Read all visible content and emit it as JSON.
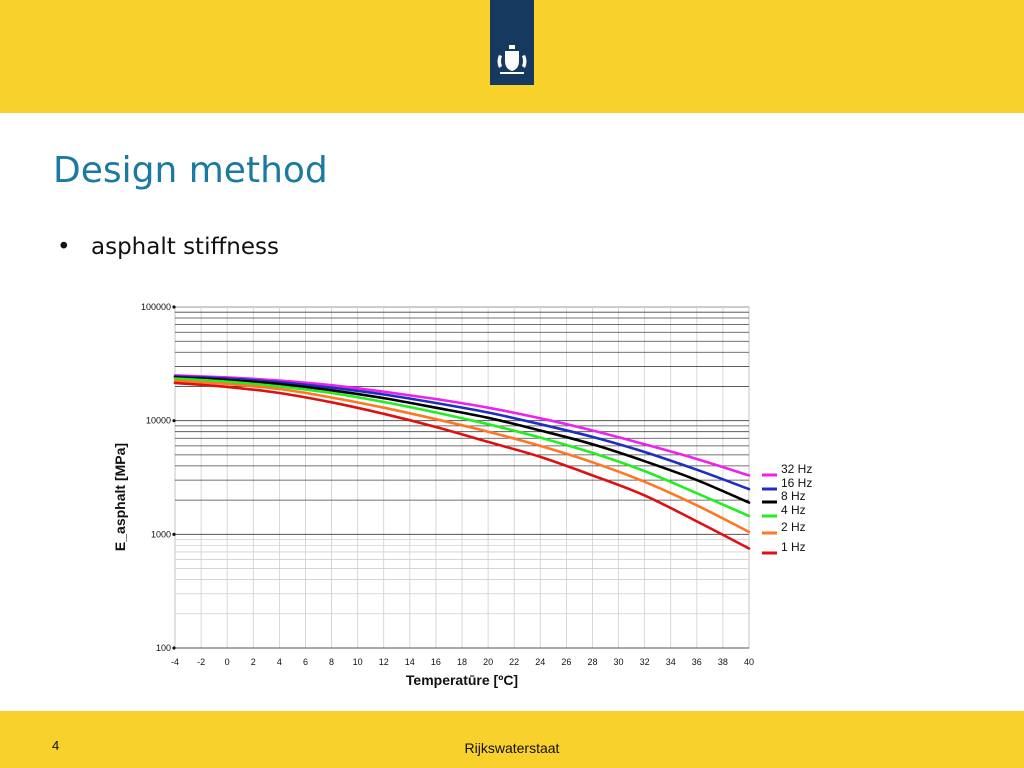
{
  "slide": {
    "title": "Design method",
    "bullet": "asphalt stiffness",
    "page_number": "4",
    "organization": "Rijkswaterstaat"
  },
  "colors": {
    "band": "#f9d12c",
    "logo": "#163a5f",
    "title": "#1a7aa0"
  },
  "icons": {
    "logo": "royal-coat-of-arms-icon"
  },
  "chart_data": {
    "type": "line",
    "xlabel": "Temperatūre [ºC]",
    "ylabel": "E_asphalt [MPa]",
    "yscale": "log",
    "xlim": [
      -4,
      40
    ],
    "ylim": [
      100,
      100000
    ],
    "xticks": [
      -4,
      -2,
      0,
      2,
      4,
      6,
      8,
      10,
      12,
      14,
      16,
      18,
      20,
      22,
      24,
      26,
      28,
      30,
      32,
      34,
      36,
      38,
      40
    ],
    "ytick_labels": [
      "100000",
      "10000",
      "1000",
      "100"
    ],
    "grid": true,
    "legend_position": "right",
    "x": [
      -4,
      0,
      4,
      8,
      12,
      16,
      20,
      24,
      28,
      32,
      36,
      40
    ],
    "series": [
      {
        "name": "32 Hz",
        "color": "#ee22ee",
        "values": [
          25000,
          24000,
          22500,
          20500,
          18000,
          15500,
          13000,
          10500,
          8200,
          6200,
          4600,
          3300
        ]
      },
      {
        "name": "16 Hz",
        "color": "#1c2fbf",
        "values": [
          24500,
          23500,
          21800,
          19500,
          17000,
          14300,
          11800,
          9300,
          7200,
          5300,
          3700,
          2500
        ]
      },
      {
        "name": "8 Hz",
        "color": "#000000",
        "values": [
          24000,
          22800,
          21000,
          18500,
          15800,
          13000,
          10600,
          8200,
          6200,
          4400,
          3000,
          1900
        ]
      },
      {
        "name": "4 Hz",
        "color": "#22ee22",
        "values": [
          23500,
          22000,
          20000,
          17500,
          14600,
          11800,
          9300,
          7100,
          5200,
          3600,
          2300,
          1450
        ]
      },
      {
        "name": "2 Hz",
        "color": "#ff7722",
        "values": [
          22500,
          21000,
          19000,
          16000,
          13000,
          10300,
          8000,
          6000,
          4300,
          2900,
          1800,
          1050
        ]
      },
      {
        "name": "1 Hz",
        "color": "#dd1111",
        "values": [
          21500,
          19800,
          17500,
          14500,
          11500,
          8800,
          6500,
          4800,
          3300,
          2200,
          1300,
          750
        ]
      }
    ]
  }
}
